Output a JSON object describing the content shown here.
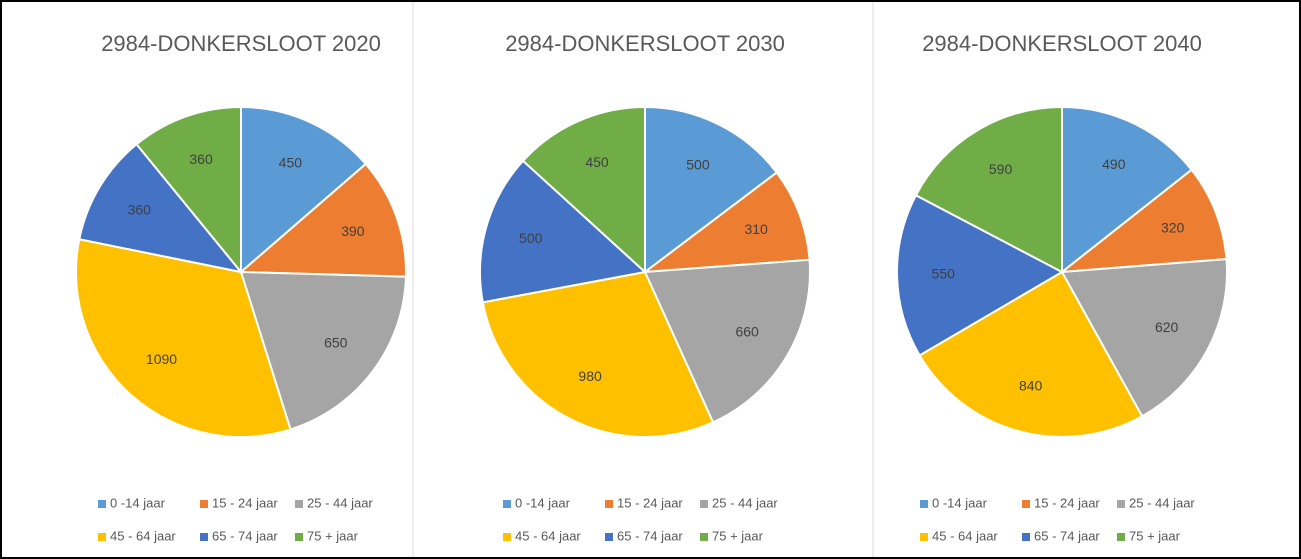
{
  "chart_data": [
    {
      "type": "pie",
      "title": "2984-DONKERSLOOT 2020",
      "categories": [
        "0 -14 jaar",
        "15 - 24 jaar",
        "25 - 44 jaar",
        "45 - 64 jaar",
        "65 - 74 jaar",
        "75 + jaar"
      ],
      "values": [
        450,
        390,
        650,
        1090,
        360,
        360
      ],
      "colors": [
        "#5b9bd5",
        "#ed7d31",
        "#a5a5a5",
        "#ffc000",
        "#4472c4",
        "#70ad47"
      ]
    },
    {
      "type": "pie",
      "title": "2984-DONKERSLOOT 2030",
      "categories": [
        "0 -14 jaar",
        "15 - 24 jaar",
        "25 - 44 jaar",
        "45 - 64 jaar",
        "65 - 74 jaar",
        "75 + jaar"
      ],
      "values": [
        500,
        310,
        660,
        980,
        500,
        450
      ],
      "colors": [
        "#5b9bd5",
        "#ed7d31",
        "#a5a5a5",
        "#ffc000",
        "#4472c4",
        "#70ad47"
      ]
    },
    {
      "type": "pie",
      "title": "2984-DONKERSLOOT 2040",
      "categories": [
        "0 -14 jaar",
        "15 - 24 jaar",
        "25 - 44 jaar",
        "45 - 64 jaar",
        "65 - 74 jaar",
        "75 + jaar"
      ],
      "values": [
        490,
        320,
        620,
        840,
        550,
        590
      ],
      "colors": [
        "#5b9bd5",
        "#ed7d31",
        "#a5a5a5",
        "#ffc000",
        "#4472c4",
        "#70ad47"
      ]
    }
  ]
}
